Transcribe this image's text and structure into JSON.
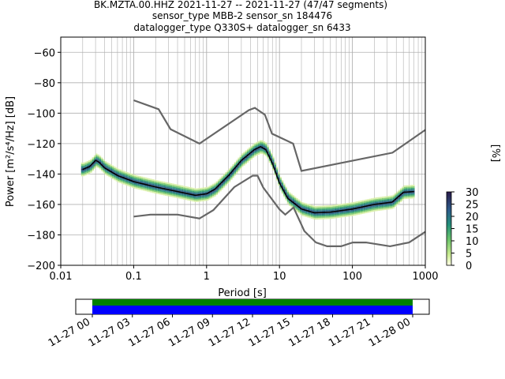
{
  "figure": {
    "title_lines": [
      "BK.MZTA.00.HHZ   2021-11-27 -- 2021-11-27  (47/47 segments)",
      "sensor_type MBB-2 sensor_sn 184476",
      "datalogger_type Q330S+ datalogger_sn 6433"
    ]
  },
  "chart_data": [
    {
      "type": "heatmap",
      "xlabel": "Period [s]",
      "ylabel": "Power [m²/s⁴/Hz] [dB]",
      "xscale": "log",
      "xlim": [
        0.01,
        1000
      ],
      "ylim": [
        -200,
        -50
      ],
      "xticks": [
        "0.01",
        "0.1",
        "1",
        "10",
        "100",
        "1000"
      ],
      "yticks": [
        "−60",
        "−80",
        "−100",
        "−120",
        "−140",
        "−160",
        "−180",
        "−200"
      ],
      "grid": true,
      "colorbar": {
        "label": "[%]",
        "range": [
          0,
          30
        ],
        "ticks": [
          "0",
          "5",
          "10",
          "15",
          "20",
          "25",
          "30"
        ]
      },
      "series": [
        {
          "kind": "model-high",
          "color": "#666666",
          "x": [
            0.1,
            0.22,
            0.32,
            0.8,
            3.8,
            4.6,
            6.3,
            7.9,
            15.4,
            20,
            354.8,
            1000
          ],
          "y": [
            -91.5,
            -97.4,
            -110.5,
            -120,
            -98,
            -96.5,
            -101,
            -113.5,
            -120,
            -138,
            -126,
            -111
          ]
        },
        {
          "kind": "model-low",
          "color": "#666666",
          "x": [
            0.1,
            0.17,
            0.4,
            0.8,
            1.24,
            2.4,
            4.3,
            5,
            6,
            10,
            12,
            15.6,
            21.9,
            31.6,
            45,
            70,
            101,
            154,
            328,
            600,
            1000
          ],
          "y": [
            -168,
            -166.7,
            -166.7,
            -169.2,
            -163.7,
            -148.6,
            -141.1,
            -141.1,
            -149,
            -163.2,
            -166.7,
            -162,
            -177.5,
            -185,
            -187.5,
            -187.5,
            -185,
            -185,
            -187.5,
            -185,
            -178
          ]
        },
        {
          "kind": "mean",
          "color": "#000000",
          "x": [
            0.02,
            0.025,
            0.03,
            0.033,
            0.04,
            0.06,
            0.1,
            0.2,
            0.4,
            0.7,
            1,
            1.3,
            2,
            3,
            4.5,
            5.5,
            6.5,
            8,
            10,
            13,
            20,
            30,
            50,
            100,
            200,
            350,
            500,
            700
          ],
          "y": [
            -137,
            -135,
            -131,
            -132,
            -136,
            -141,
            -145,
            -148.5,
            -151.5,
            -154,
            -153,
            -150,
            -141,
            -131,
            -124,
            -122,
            -124,
            -133,
            -146,
            -156,
            -163,
            -165.5,
            -165,
            -163,
            -160,
            -158.5,
            -152,
            -151.5
          ]
        }
      ]
    },
    {
      "type": "bar",
      "title": "",
      "xticks": [
        "11-27 00",
        "11-27 03",
        "11-27 06",
        "11-27 09",
        "11-27 12",
        "11-27 15",
        "11-27 18",
        "11-27 21",
        "11-28 00"
      ],
      "series": [
        {
          "name": "",
          "color": "#008000",
          "start": "11-27 00",
          "end": "11-28 00"
        },
        {
          "name": "",
          "color": "#0000ff",
          "start": "11-27 00",
          "end": "11-28 00"
        }
      ]
    }
  ]
}
